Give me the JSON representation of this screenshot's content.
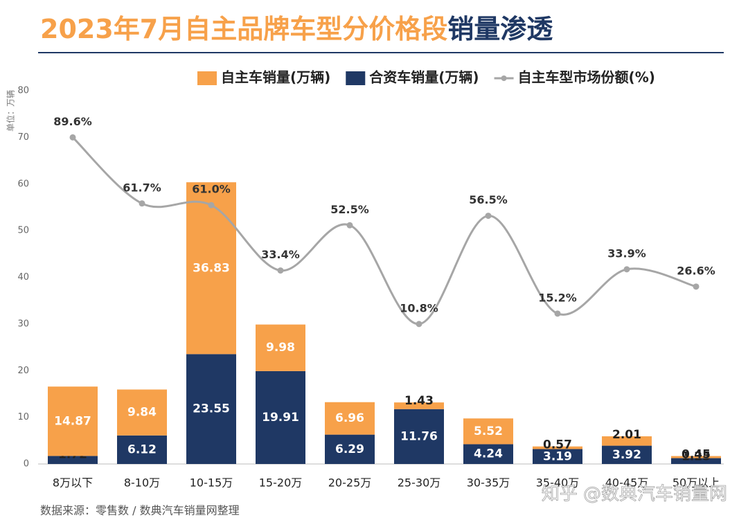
{
  "chart_data": {
    "type": "stacked-bar-line",
    "title": [
      "2023年7月自主品牌车型分价格段",
      "销量渗透"
    ],
    "y_axis_label": "单位：万辆",
    "source": "数据来源：零售数 / 数典汽车销量网整理",
    "watermark": "知乎 @数典汽车销量网",
    "categories": [
      "8万以下",
      "8-10万",
      "10-15万",
      "15-20万",
      "20-25万",
      "25-30万",
      "30-35万",
      "35-40万",
      "40-45万",
      "50万以上"
    ],
    "series": [
      {
        "name": "合资车销量(万辆)",
        "color": "#1f3864",
        "values": [
          1.72,
          6.12,
          23.55,
          19.91,
          6.29,
          11.76,
          4.24,
          3.19,
          3.92,
          1.25
        ]
      },
      {
        "name": "自主车销量(万辆)",
        "color": "#f7a14a",
        "values": [
          14.87,
          9.84,
          36.83,
          9.98,
          6.96,
          1.43,
          5.52,
          0.57,
          2.01,
          0.45
        ]
      },
      {
        "name": "自主车型市场份额(%)",
        "color": "#a6a6a6",
        "axis": "y2",
        "values": [
          89.6,
          61.7,
          61.0,
          33.4,
          52.5,
          10.8,
          56.5,
          15.2,
          33.9,
          26.6
        ],
        "value_labels": [
          "89.6%",
          "61.7%",
          "61.0%",
          "33.4%",
          "52.5%",
          "10.8%",
          "56.5%",
          "15.2%",
          "33.9%",
          "26.6%"
        ]
      }
    ],
    "legend_order": [
      1,
      0,
      2
    ],
    "ylim": [
      0,
      80
    ],
    "yticks": [
      0,
      10,
      20,
      30,
      40,
      50,
      60,
      70,
      80
    ],
    "y2lim": [
      -48.3,
      109.3
    ],
    "grid": false
  }
}
